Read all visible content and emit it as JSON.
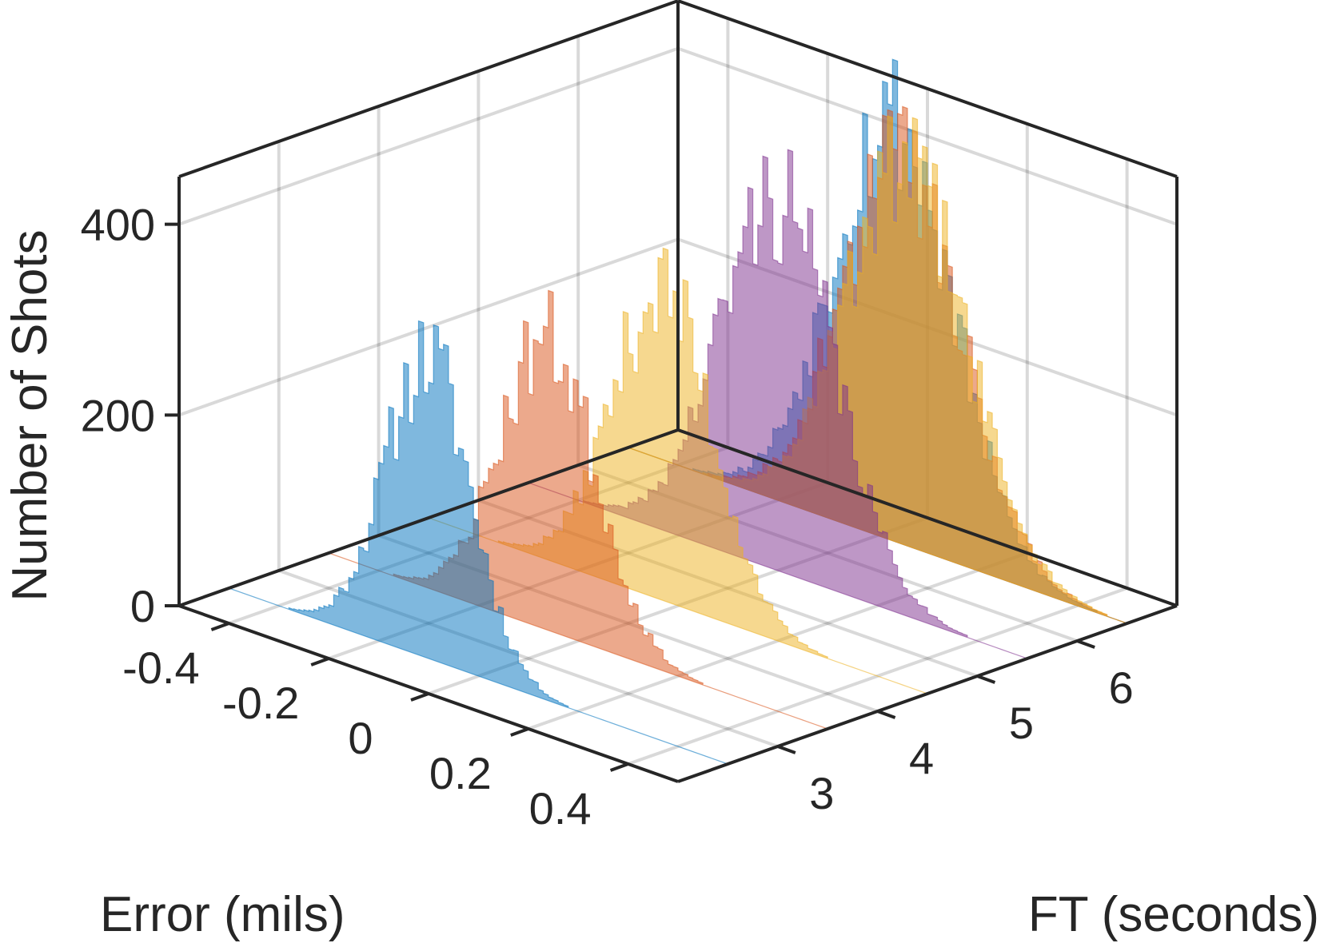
{
  "chart_data": {
    "type": "bar",
    "view": "3d-waterfall-histogram",
    "title": "",
    "xlabel": "Error (mils)",
    "ylabel": "FT (seconds)",
    "zlabel": "Number of Shots",
    "xlim": [
      -0.5,
      0.5
    ],
    "ylim": [
      2,
      7
    ],
    "zlim": [
      0,
      450
    ],
    "x_ticks": [
      -0.4,
      -0.2,
      0,
      0.2,
      0.4
    ],
    "x_tick_labels": [
      "-0.4",
      "-0.2",
      "0",
      "0.2",
      "0.4"
    ],
    "y_ticks": [
      3,
      4,
      5,
      6
    ],
    "y_tick_labels": [
      "3",
      "4",
      "5",
      "6"
    ],
    "z_ticks": [
      0,
      200,
      400
    ],
    "z_tick_labels": [
      "0",
      "200",
      "400"
    ],
    "grid": true,
    "legend": "none",
    "bin_width": 0.01,
    "series": [
      {
        "ft": 2.5,
        "color": "#0072BD",
        "mean": -0.1,
        "sd": 0.085,
        "peak": 315,
        "noise_seed": 11
      },
      {
        "ft": 3.5,
        "color": "#D95319",
        "mean": -0.06,
        "sd": 0.095,
        "peak": 305,
        "noise_seed": 23
      },
      {
        "ft": 4.5,
        "color": "#EDB120",
        "mean": -0.03,
        "sd": 0.1,
        "peak": 325,
        "noise_seed": 37
      },
      {
        "ft": 5.5,
        "color": "#7E2F8E",
        "mean": 0.0,
        "sd": 0.115,
        "peak": 390,
        "noise_seed": 41
      },
      {
        "ft": 6.5,
        "color": "#0072BD",
        "mean": 0.03,
        "sd": 0.12,
        "peak": 445,
        "noise_seed": 53
      },
      {
        "ft": 6.5,
        "color": "#D95319",
        "mean": 0.05,
        "sd": 0.12,
        "peak": 405,
        "noise_seed": 59
      },
      {
        "ft": 6.5,
        "color": "#EDB120",
        "mean": 0.06,
        "sd": 0.12,
        "peak": 395,
        "noise_seed": 61
      }
    ]
  }
}
